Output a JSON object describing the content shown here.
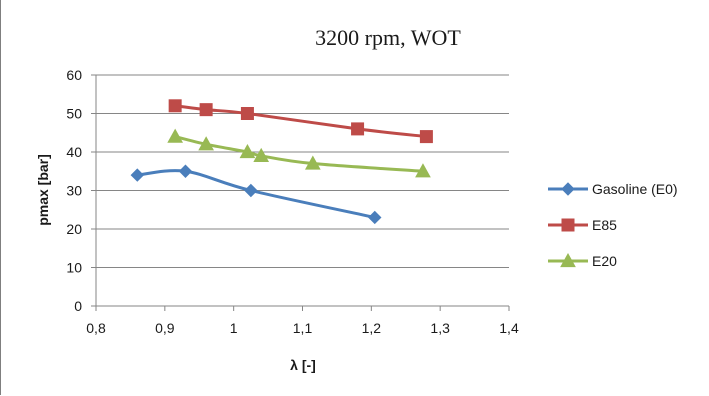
{
  "chart_data": {
    "type": "line",
    "title": "3200 rpm, WOT",
    "xlabel": "λ [-]",
    "ylabel": "pmax [bar]",
    "xlim": [
      0.8,
      1.4
    ],
    "ylim": [
      0,
      60
    ],
    "x_ticks": [
      0.8,
      0.9,
      1.0,
      1.1,
      1.2,
      1.3,
      1.4
    ],
    "x_tick_labels": [
      "0,8",
      "0,9",
      "1",
      "1,1",
      "1,2",
      "1,3",
      "1,4"
    ],
    "y_ticks": [
      0,
      10,
      20,
      30,
      40,
      50,
      60
    ],
    "y_tick_labels": [
      "0",
      "10",
      "20",
      "30",
      "40",
      "50",
      "60"
    ],
    "grid": "horizontal",
    "legend_position": "right",
    "series": [
      {
        "name": "Gasoline (E0)",
        "color": "#4a7ebb",
        "marker": "diamond",
        "points": [
          [
            0.86,
            34
          ],
          [
            0.93,
            35
          ],
          [
            1.025,
            30
          ],
          [
            1.205,
            23
          ]
        ]
      },
      {
        "name": "E85",
        "color": "#be4b48",
        "marker": "square",
        "points": [
          [
            0.915,
            52
          ],
          [
            0.96,
            51
          ],
          [
            1.02,
            50
          ],
          [
            1.18,
            46
          ],
          [
            1.28,
            44
          ]
        ]
      },
      {
        "name": "E20",
        "color": "#98b954",
        "marker": "triangle",
        "points": [
          [
            0.915,
            44
          ],
          [
            0.96,
            42
          ],
          [
            1.02,
            40
          ],
          [
            1.04,
            39
          ],
          [
            1.115,
            37
          ],
          [
            1.275,
            35
          ]
        ]
      }
    ]
  }
}
